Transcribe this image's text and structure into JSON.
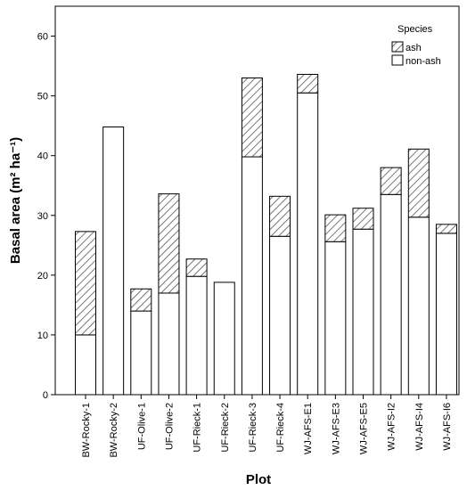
{
  "chart_data": {
    "type": "bar",
    "stacked": true,
    "categories": [
      "BW-Rocky-1",
      "BW-Rocky-2",
      "UF-Olive-1",
      "UF-Olive-2",
      "UF-Rieck-1",
      "UF-Rieck-2",
      "UF-Rieck-3",
      "UF-Rieck-4",
      "WJ-AFS-E1",
      "WJ-AFS-E3",
      "WJ-AFS-E5",
      "WJ-AFS-I2",
      "WJ-AFS-I4",
      "WJ-AFS-I6"
    ],
    "series": [
      {
        "name": "non-ash",
        "values": [
          10,
          44.8,
          14,
          17,
          19.8,
          18.8,
          39.8,
          26.5,
          50.5,
          25.6,
          27.7,
          33.5,
          29.7,
          27
        ],
        "fill": "#ffffff",
        "pattern": "none"
      },
      {
        "name": "ash",
        "values": [
          17.3,
          0,
          3.7,
          16.6,
          2.9,
          0,
          13.2,
          6.7,
          3.1,
          4.5,
          3.5,
          4.5,
          11.4,
          1.5
        ],
        "fill": "#ffffff",
        "pattern": "hatched"
      }
    ],
    "xlabel": "Plot",
    "ylabel": "Basal area (m² ha⁻¹)",
    "ylim": [
      0,
      65
    ],
    "yticks": [
      0,
      10,
      20,
      30,
      40,
      50,
      60
    ],
    "grid": false,
    "legend": {
      "title": "Species",
      "position": "top-right"
    },
    "colors": {
      "stroke": "#000000",
      "background": "#ffffff"
    }
  }
}
